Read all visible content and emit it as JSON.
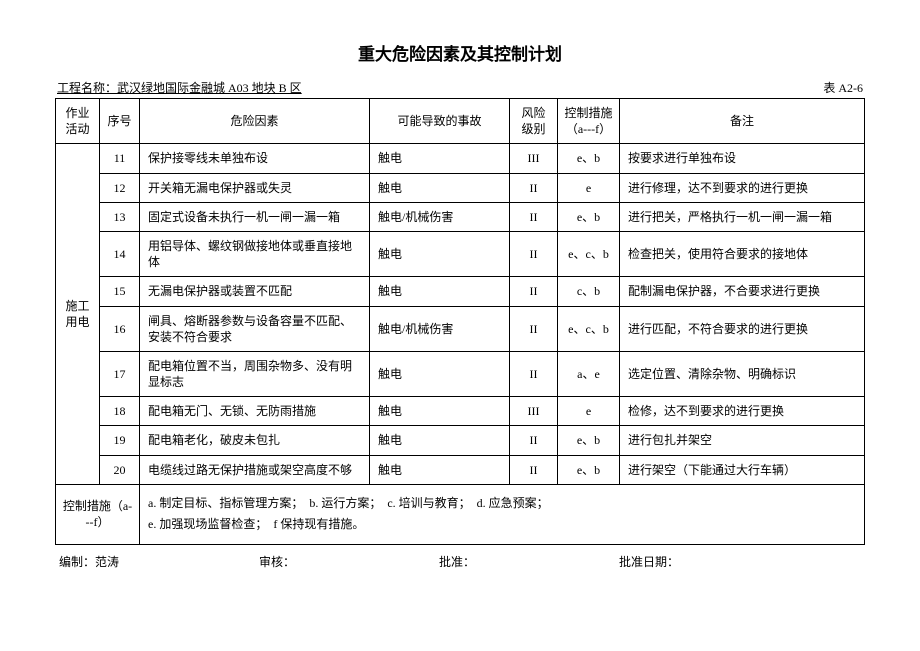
{
  "title": "重大危险因素及其控制计划",
  "meta": {
    "project_label": "工程名称：武汉绿地国际金融城 A03 地块 B 区",
    "table_no": "表 A2-6"
  },
  "headers": {
    "activity": "作业活动",
    "seq": "序号",
    "factor": "危险因素",
    "accident": "可能导致的事故",
    "level": "风险级别",
    "measure": "控制措施（a---f）",
    "remark": "备注"
  },
  "activity_group": "施工用电",
  "rows": [
    {
      "seq": "11",
      "factor": "保护接零线未单独布设",
      "accident": "触电",
      "level": "III",
      "measure": "e、b",
      "remark": "按要求进行单独布设"
    },
    {
      "seq": "12",
      "factor": "开关箱无漏电保护器或失灵",
      "accident": "触电",
      "level": "II",
      "measure": "e",
      "remark": "进行修理，达不到要求的进行更换"
    },
    {
      "seq": "13",
      "factor": "固定式设备未执行一机一闸一漏一箱",
      "accident": "触电/机械伤害",
      "level": "II",
      "measure": "e、b",
      "remark": "进行把关，严格执行一机一闸一漏一箱"
    },
    {
      "seq": "14",
      "factor": "用铝导体、螺纹钢做接地体或垂直接地体",
      "accident": "触电",
      "level": "II",
      "measure": "e、c、b",
      "remark": "检查把关，使用符合要求的接地体"
    },
    {
      "seq": "15",
      "factor": "无漏电保护器或装置不匹配",
      "accident": "触电",
      "level": "II",
      "measure": "c、b",
      "remark": "配制漏电保护器，不合要求进行更换"
    },
    {
      "seq": "16",
      "factor": "闸具、熔断器参数与设备容量不匹配、安装不符合要求",
      "accident": "触电/机械伤害",
      "level": "II",
      "measure": "e、c、b",
      "remark": "进行匹配，不符合要求的进行更换"
    },
    {
      "seq": "17",
      "factor": "配电箱位置不当，周围杂物多、没有明显标志",
      "accident": "触电",
      "level": "II",
      "measure": "a、e",
      "remark": "选定位置、清除杂物、明确标识"
    },
    {
      "seq": "18",
      "factor": "配电箱无门、无锁、无防雨措施",
      "accident": "触电",
      "level": "III",
      "measure": "e",
      "remark": "检修，达不到要求的进行更换"
    },
    {
      "seq": "19",
      "factor": "配电箱老化，破皮未包扎",
      "accident": "触电",
      "level": "II",
      "measure": "e、b",
      "remark": "进行包扎并架空"
    },
    {
      "seq": "20",
      "factor": "电缆线过路无保护措施或架空高度不够",
      "accident": "触电",
      "level": "II",
      "measure": "e、b",
      "remark": "进行架空（下能通过大行车辆）"
    }
  ],
  "legend": {
    "label": "控制措施（a---f）",
    "line1": "a. 制定目标、指标管理方案；　b. 运行方案；　c. 培训与教育；　d. 应急预案；",
    "line2": "e. 加强现场监督检查；　f 保持现有措施。"
  },
  "sign": {
    "compile": "编制：范涛",
    "review": "审核：",
    "approve": "批准：",
    "date": "批准日期："
  }
}
